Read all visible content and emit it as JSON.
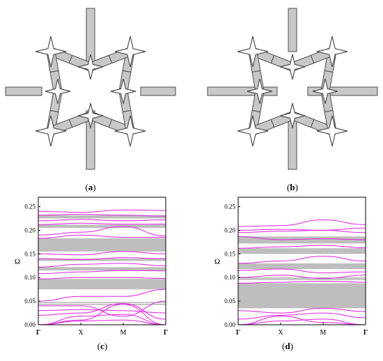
{
  "figure": {
    "panels": [
      {
        "label_open": "(",
        "letter": "a",
        "label_close": ")"
      },
      {
        "label_open": "(",
        "letter": "b",
        "label_close": ")"
      },
      {
        "label_open": "(",
        "letter": "c",
        "label_close": ")"
      },
      {
        "label_open": "(",
        "letter": "d",
        "label_close": ")"
      }
    ]
  },
  "colors": {
    "structure_fill": "#c8c8c8",
    "structure_stroke": "#4d4d4d",
    "band": "#e020e0",
    "gap": "#bebebe",
    "axis": "#000000"
  },
  "chart_data": [
    {
      "type": "line",
      "panel": "c",
      "ylabel": "Ω",
      "ylim": [
        0,
        0.27
      ],
      "yticks": [
        "0.00",
        "0.05",
        "0.10",
        "0.15",
        "0.20",
        "0.25"
      ],
      "x_ticks": [
        "Γ",
        "X",
        "M",
        "Γ"
      ],
      "band_gaps": [
        [
          0.075,
          0.097
        ],
        [
          0.115,
          0.122
        ],
        [
          0.135,
          0.14
        ],
        [
          0.155,
          0.183
        ],
        [
          0.205,
          0.212
        ],
        [
          0.225,
          0.232
        ]
      ],
      "gap_edges": [
        0.043,
        0.047
      ],
      "bands": [
        [
          0.0,
          0.008,
          0.01,
          0.0
        ],
        [
          0.0,
          0.018,
          0.022,
          0.0
        ],
        [
          0.0,
          0.01,
          0.043,
          0.0
        ],
        [
          0.02,
          0.025,
          0.045,
          0.012
        ],
        [
          0.03,
          0.032,
          0.03,
          0.025
        ],
        [
          0.04,
          0.04,
          0.018,
          0.05
        ],
        [
          0.05,
          0.06,
          0.06,
          0.075
        ],
        [
          0.097,
          0.1,
          0.1,
          0.098
        ],
        [
          0.108,
          0.112,
          0.115,
          0.114
        ],
        [
          0.122,
          0.128,
          0.13,
          0.125
        ],
        [
          0.14,
          0.138,
          0.142,
          0.14
        ],
        [
          0.15,
          0.148,
          0.155,
          0.15
        ],
        [
          0.183,
          0.19,
          0.185,
          0.185
        ],
        [
          0.19,
          0.196,
          0.208,
          0.188
        ],
        [
          0.212,
          0.215,
          0.213,
          0.213
        ],
        [
          0.22,
          0.223,
          0.22,
          0.222
        ],
        [
          0.232,
          0.234,
          0.232,
          0.23
        ],
        [
          0.24,
          0.238,
          0.243,
          0.242
        ]
      ]
    },
    {
      "type": "line",
      "panel": "d",
      "ylabel": "Ω",
      "ylim": [
        0,
        0.27
      ],
      "yticks": [
        "0.00",
        "0.05",
        "0.10",
        "0.15",
        "0.20",
        "0.25"
      ],
      "x_ticks": [
        "Γ",
        "X",
        "M",
        "Γ"
      ],
      "band_gaps": [
        [
          0.035,
          0.088
        ],
        [
          0.118,
          0.13
        ],
        [
          0.15,
          0.162
        ],
        [
          0.172,
          0.187
        ]
      ],
      "gap_edges": [
        0.096,
        0.099
      ],
      "bands": [
        [
          0.0,
          0.008,
          0.012,
          0.0
        ],
        [
          0.0,
          0.018,
          0.005,
          0.0
        ],
        [
          0.012,
          0.02,
          0.025,
          0.015
        ],
        [
          0.03,
          0.025,
          0.035,
          0.028
        ],
        [
          0.088,
          0.09,
          0.092,
          0.09
        ],
        [
          0.1,
          0.105,
          0.098,
          0.105
        ],
        [
          0.115,
          0.118,
          0.11,
          0.112
        ],
        [
          0.13,
          0.135,
          0.145,
          0.135
        ],
        [
          0.162,
          0.165,
          0.168,
          0.163
        ],
        [
          0.187,
          0.18,
          0.182,
          0.18
        ],
        [
          0.195,
          0.198,
          0.2,
          0.195
        ],
        [
          0.2,
          0.202,
          0.2,
          0.205
        ],
        [
          0.208,
          0.21,
          0.222,
          0.212
        ]
      ]
    }
  ]
}
